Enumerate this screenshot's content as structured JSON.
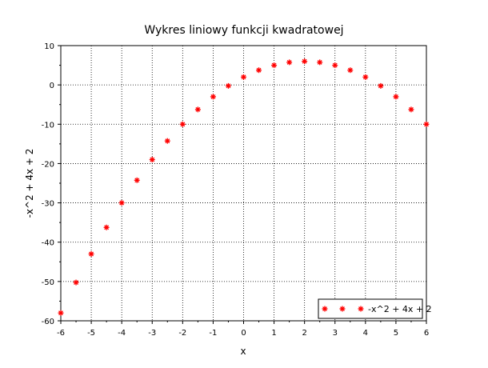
{
  "chart_data": {
    "type": "scatter",
    "title": "Wykres liniowy funkcji kwadratowej",
    "xlabel": "x",
    "ylabel": "-x^2 + 4x + 2",
    "xlim": [
      -6,
      6
    ],
    "ylim": [
      -60,
      10
    ],
    "xticks": [
      -6,
      -5,
      -4,
      -3,
      -2,
      -1,
      0,
      1,
      2,
      3,
      4,
      5,
      6
    ],
    "yticks": [
      10,
      0,
      -10,
      -20,
      -30,
      -40,
      -50,
      -60
    ],
    "grid": true,
    "legend_position": "bottom-right",
    "series": [
      {
        "name": "-x^2 + 4x + 2",
        "color": "#ff0000",
        "marker": "asterisk",
        "x": [
          -6,
          -5.5,
          -5,
          -4.5,
          -4,
          -3.5,
          -3,
          -2.5,
          -2,
          -1.5,
          -1,
          -0.5,
          0,
          0.5,
          1,
          1.5,
          2,
          2.5,
          3,
          3.5,
          4,
          4.5,
          5,
          5.5,
          6
        ],
        "y": [
          -58,
          -50.25,
          -43,
          -36.25,
          -30,
          -24.25,
          -19,
          -14.25,
          -10,
          -6.25,
          -3,
          -0.25,
          2,
          3.75,
          5,
          5.75,
          6,
          5.75,
          5,
          3.75,
          2,
          -0.25,
          -3,
          -6.25,
          -10
        ]
      }
    ]
  }
}
